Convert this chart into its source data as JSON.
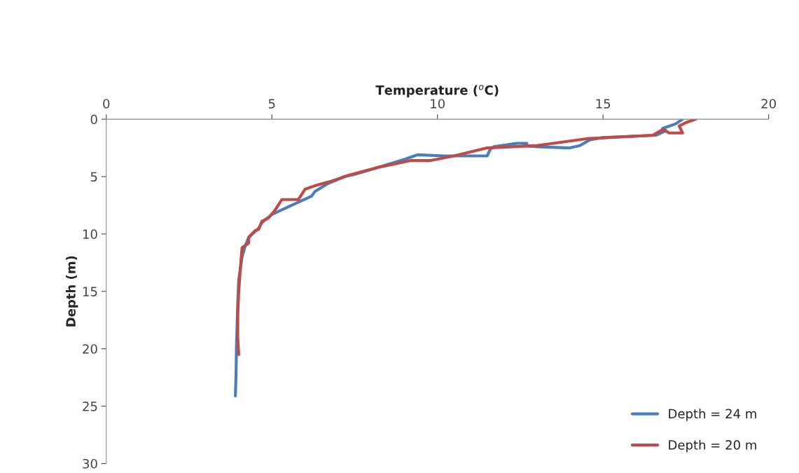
{
  "chart_data": {
    "type": "line",
    "xlabel": "Temperature ($^{o}$C)",
    "ylabel": "Depth (m)",
    "xlim": [
      0,
      20
    ],
    "xticks": [
      0,
      5,
      10,
      15,
      20
    ],
    "ylim": [
      30,
      0
    ],
    "yticks": [
      0,
      5,
      10,
      15,
      20,
      25,
      30
    ],
    "grid": false,
    "legend": "bottom right",
    "marker": "none",
    "line_style": "solid",
    "series": [
      {
        "name": "Depth = 24 m",
        "color": "#4a7ebb",
        "x": [
          17.4,
          17.2,
          16.8,
          16.9,
          16.6,
          15.0,
          14.6,
          14.3,
          14.0,
          13.0,
          12.6,
          12.7,
          12.4,
          11.7,
          11.6,
          11.5,
          10.2,
          9.4,
          9.3,
          9.0,
          8.2,
          7.5,
          7.2,
          6.7,
          6.3,
          6.2,
          5.6,
          5.0,
          4.7,
          4.6,
          4.3,
          4.2,
          4.1,
          4.0,
          3.97,
          3.95,
          3.93,
          3.92,
          3.9
        ],
        "values": [
          0,
          0.4,
          0.8,
          1.0,
          1.4,
          1.6,
          1.8,
          2.3,
          2.5,
          2.4,
          2.3,
          2.1,
          2.1,
          2.4,
          2.6,
          3.2,
          3.2,
          3.1,
          3.2,
          3.5,
          4.2,
          4.8,
          5.0,
          5.6,
          6.3,
          6.7,
          7.5,
          8.3,
          9.0,
          9.5,
          10.3,
          11.0,
          12.0,
          14.0,
          16.0,
          18.0,
          20.0,
          22.0,
          24.1
        ]
      },
      {
        "name": "Depth = 20 m",
        "color": "#be4b48",
        "x": [
          17.8,
          17.5,
          17.3,
          17.4,
          17.0,
          16.8,
          16.5,
          14.5,
          13.0,
          11.5,
          10.5,
          9.8,
          9.2,
          8.2,
          7.3,
          6.8,
          6.3,
          6.0,
          5.8,
          5.3,
          5.1,
          4.9,
          4.7,
          4.6,
          4.5,
          4.3,
          4.3,
          4.1,
          4.05,
          4.0,
          3.97,
          3.97,
          4.0
        ],
        "values": [
          0,
          0.3,
          0.6,
          1.2,
          1.2,
          0.9,
          1.4,
          1.7,
          2.3,
          2.5,
          3.2,
          3.6,
          3.6,
          4.2,
          4.9,
          5.4,
          5.8,
          6.1,
          7.0,
          7.0,
          7.9,
          8.6,
          8.9,
          9.6,
          9.7,
          10.3,
          10.8,
          11.2,
          13.0,
          15.0,
          17.0,
          19.0,
          20.5
        ]
      }
    ]
  }
}
